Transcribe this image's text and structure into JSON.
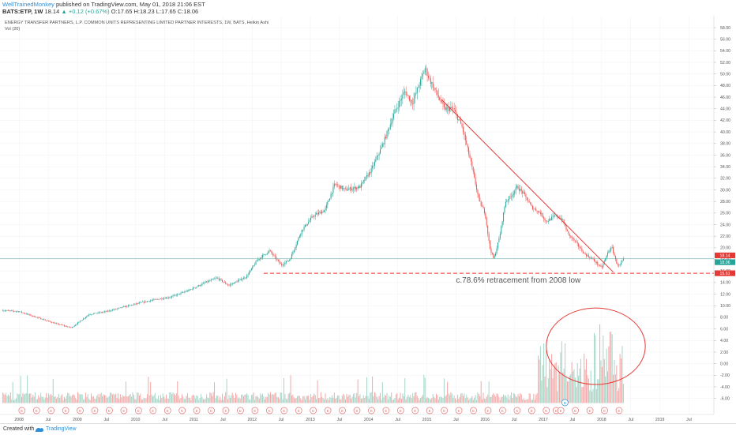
{
  "header": {
    "author": "WellTrainedMonkey",
    "published": "published on TradingView.com, May 01, 2018 21:06 EST",
    "symbol": "BATS:ETP, 1W",
    "last": "18.14",
    "change": "▲ +0.12 (+0.67%)",
    "ohlc": "O:17.65 H:18.23 L:17.65 C:18.06"
  },
  "footer": {
    "created_with": "Created with",
    "brand": "TradingView"
  },
  "chart_data": {
    "type": "candlestick",
    "title": "ENERGY TRANSFER PARTNERS, L.P. COMMON UNITS REPRESENTING LIMITED PARTNER INTERESTS, 1W, BATS, Heikin Ashi",
    "subtitle": "Vol (20)",
    "x": {
      "range": [
        2007.7,
        2019.9
      ],
      "tick_labels": [
        {
          "t": 2008.0,
          "label": "2008"
        },
        {
          "t": 2008.5,
          "label": "Jul"
        },
        {
          "t": 2009.0,
          "label": "2009"
        },
        {
          "t": 2009.5,
          "label": "Jul"
        },
        {
          "t": 2010.0,
          "label": "2010"
        },
        {
          "t": 2010.5,
          "label": "Jul"
        },
        {
          "t": 2011.0,
          "label": "2011"
        },
        {
          "t": 2011.5,
          "label": "Jul"
        },
        {
          "t": 2012.0,
          "label": "2012"
        },
        {
          "t": 2012.5,
          "label": "Jul"
        },
        {
          "t": 2013.0,
          "label": "2013"
        },
        {
          "t": 2013.5,
          "label": "Jul"
        },
        {
          "t": 2014.0,
          "label": "2014"
        },
        {
          "t": 2014.5,
          "label": "Jul"
        },
        {
          "t": 2015.0,
          "label": "2015"
        },
        {
          "t": 2015.5,
          "label": "Jul"
        },
        {
          "t": 2016.0,
          "label": "2016"
        },
        {
          "t": 2016.5,
          "label": "Jul"
        },
        {
          "t": 2017.0,
          "label": "2017"
        },
        {
          "t": 2017.5,
          "label": "Jul"
        },
        {
          "t": 2018.0,
          "label": "2018"
        },
        {
          "t": 2018.5,
          "label": "Jul"
        },
        {
          "t": 2019.0,
          "label": "2019"
        },
        {
          "t": 2019.5,
          "label": "Jul"
        }
      ]
    },
    "y": {
      "range": [
        -7,
        59.5
      ],
      "tick_labels": [
        "58.00",
        "56.00",
        "54.00",
        "52.00",
        "50.00",
        "48.00",
        "46.00",
        "44.00",
        "42.00",
        "40.00",
        "38.00",
        "36.00",
        "34.00",
        "32.00",
        "30.00",
        "28.00",
        "26.00",
        "24.00",
        "22.00",
        "20.00",
        "18.00",
        "16.00",
        "14.00",
        "12.00",
        "10.00",
        "8.00",
        "6.00",
        "4.00",
        "2.00",
        "0.00",
        "-2.00",
        "-4.00",
        "-6.00"
      ],
      "price_labels": [
        {
          "value": 18.14,
          "label": "18.14",
          "color": "#e53935"
        },
        {
          "value": 18.06,
          "label": "18.06",
          "color": "#ffffff"
        },
        {
          "value": 15.61,
          "label": "15.61",
          "color": "#e53935"
        }
      ]
    },
    "price_path": [
      [
        2007.7,
        9.2
      ],
      [
        2008.0,
        9.0
      ],
      [
        2008.3,
        8.0
      ],
      [
        2008.6,
        7.0
      ],
      [
        2008.9,
        6.2
      ],
      [
        2009.2,
        8.5
      ],
      [
        2009.5,
        9.0
      ],
      [
        2009.8,
        9.8
      ],
      [
        2010.0,
        10.3
      ],
      [
        2010.3,
        11.0
      ],
      [
        2010.6,
        11.5
      ],
      [
        2010.9,
        12.6
      ],
      [
        2011.2,
        14.0
      ],
      [
        2011.4,
        14.8
      ],
      [
        2011.6,
        13.5
      ],
      [
        2011.9,
        15.0
      ],
      [
        2012.1,
        18.0
      ],
      [
        2012.3,
        19.5
      ],
      [
        2012.5,
        17.0
      ],
      [
        2012.65,
        18.0
      ],
      [
        2012.85,
        23.0
      ],
      [
        2013.05,
        25.5
      ],
      [
        2013.25,
        26.5
      ],
      [
        2013.42,
        31.0
      ],
      [
        2013.6,
        30.0
      ],
      [
        2013.85,
        30.5
      ],
      [
        2014.05,
        33.5
      ],
      [
        2014.25,
        38.0
      ],
      [
        2014.45,
        43.5
      ],
      [
        2014.62,
        47.0
      ],
      [
        2014.75,
        45.0
      ],
      [
        2014.9,
        49.0
      ],
      [
        2014.97,
        51.0
      ],
      [
        2015.05,
        49.0
      ],
      [
        2015.15,
        47.0
      ],
      [
        2015.3,
        44.0
      ],
      [
        2015.45,
        44.0
      ],
      [
        2015.6,
        41.0
      ],
      [
        2015.75,
        35.0
      ],
      [
        2015.9,
        28.0
      ],
      [
        2016.0,
        26.0
      ],
      [
        2016.08,
        20.0
      ],
      [
        2016.15,
        18.0
      ],
      [
        2016.25,
        22.0
      ],
      [
        2016.35,
        28.0
      ],
      [
        2016.45,
        29.0
      ],
      [
        2016.55,
        30.5
      ],
      [
        2016.65,
        29.5
      ],
      [
        2016.8,
        27.0
      ],
      [
        2016.95,
        26.0
      ],
      [
        2017.05,
        24.5
      ],
      [
        2017.2,
        25.5
      ],
      [
        2017.32,
        25.0
      ],
      [
        2017.42,
        22.5
      ],
      [
        2017.55,
        21.0
      ],
      [
        2017.7,
        19.0
      ],
      [
        2017.85,
        18.0
      ],
      [
        2018.0,
        16.5
      ],
      [
        2018.12,
        19.5
      ],
      [
        2018.18,
        20.0
      ],
      [
        2018.25,
        17.5
      ],
      [
        2018.3,
        16.8
      ],
      [
        2018.38,
        18.1
      ]
    ],
    "volume_cluster": {
      "start": 2016.9,
      "end": 2018.5,
      "max": 9.0
    },
    "earnings_marker": "E",
    "dividend_marker": "D",
    "earnings_times": [
      2008.05,
      2008.3,
      2008.55,
      2008.8,
      2009.05,
      2009.3,
      2009.55,
      2009.8,
      2010.05,
      2010.3,
      2010.55,
      2010.8,
      2011.05,
      2011.3,
      2011.55,
      2011.8,
      2012.05,
      2012.3,
      2012.55,
      2012.8,
      2013.05,
      2013.3,
      2013.55,
      2013.8,
      2014.05,
      2014.3,
      2014.55,
      2014.8,
      2015.05,
      2015.3,
      2015.55,
      2015.8,
      2016.05,
      2016.3,
      2016.55,
      2016.8,
      2017.05,
      2017.22,
      2017.3,
      2017.55,
      2017.8,
      2018.05,
      2018.3
    ],
    "dividend_times": [
      2017.37
    ],
    "annotations": [
      {
        "type": "trendline",
        "from": [
          2015.25,
          45.6
        ],
        "to": [
          2018.2,
          15.8
        ],
        "color": "#e53935"
      },
      {
        "type": "hline",
        "value": 15.61,
        "from": 2012.2,
        "to": 2019.9,
        "style": "dashed",
        "color": "#e53935"
      },
      {
        "type": "text",
        "text": "c.78.6% retracement from 2008 low",
        "at": [
          2015.5,
          14.0
        ],
        "color": "#555555"
      },
      {
        "type": "ellipse",
        "center": [
          2017.9,
          3.0
        ],
        "rx_years": 0.85,
        "ry_values": 6.6,
        "color": "#e53935"
      }
    ],
    "colors": {
      "up": "#26a69a",
      "down": "#ef5350",
      "vol_up": "#a5d6c8",
      "vol_down": "#f4a7a7",
      "grid": "#eef1f4"
    },
    "grid": true
  }
}
